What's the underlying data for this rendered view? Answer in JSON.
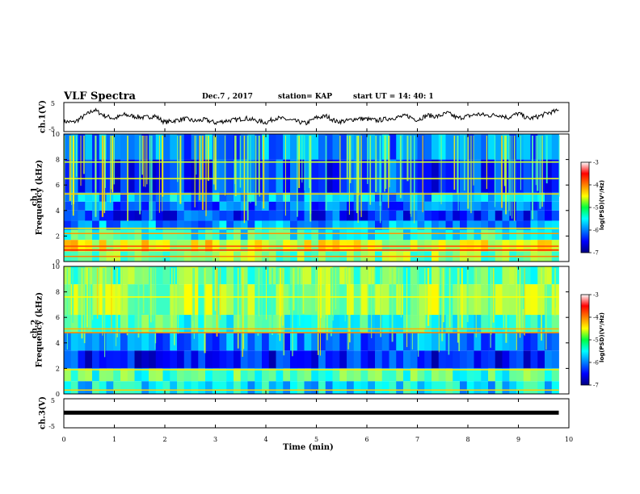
{
  "header": {
    "title": "VLF Spectra",
    "date": "Dec.7 , 2017",
    "station": "station= KAP",
    "start": "start UT = 14: 40: 1"
  },
  "chart_data": [
    {
      "panel": "ch1-waveform",
      "type": "line",
      "ylabel": "ch.1(V)",
      "ylim": [
        -5,
        5
      ],
      "y_tick_labels": [
        "5",
        "-5"
      ],
      "xlim": [
        0,
        10
      ],
      "series": [
        {
          "x": [
            0,
            0.2,
            0.4,
            0.6,
            0.8,
            1.0,
            1.2,
            1.4,
            1.6,
            1.8,
            2.0,
            2.2,
            2.4,
            2.6,
            2.8,
            3.0,
            3.2,
            3.4,
            3.6,
            3.8,
            4.0,
            4.2,
            4.4,
            4.6,
            4.8,
            5.0,
            5.2,
            5.4,
            5.6,
            5.8,
            6.0,
            6.2,
            6.4,
            6.6,
            6.8,
            7.0,
            7.2,
            7.4,
            7.6,
            7.8,
            8.0,
            8.2,
            8.4,
            8.6,
            8.8,
            9.0,
            9.2,
            9.4,
            9.6,
            9.8
          ],
          "values": [
            -1.5,
            -1.8,
            0.3,
            2.5,
            0.5,
            -0.5,
            0.8,
            0.2,
            -0.2,
            0.4,
            -1.8,
            -1.2,
            -0.6,
            -1.4,
            -0.9,
            -2.0,
            -1.3,
            -1.0,
            -0.4,
            -1.2,
            -1.9,
            -0.3,
            -0.8,
            -1.5,
            -2.2,
            -0.2,
            0.3,
            -1.6,
            -1.3,
            -0.5,
            -0.7,
            -1.2,
            -0.6,
            -0.1,
            0.4,
            -1.0,
            0.6,
            0.2,
            1.4,
            -0.4,
            0.3,
            1.0,
            0.5,
            0.8,
            -0.2,
            1.3,
            -0.6,
            0.2,
            1.5,
            2.2
          ]
        }
      ]
    },
    {
      "panel": "ch1-spectrogram",
      "type": "heatmap",
      "ylabel": "Frequency (kHz)",
      "channel_label": "ch.1",
      "ylim": [
        0,
        10
      ],
      "y_tick_labels": [
        "0",
        "2",
        "4",
        "6",
        "8",
        "10"
      ],
      "xlim": [
        0,
        10
      ],
      "data_end_min": 9.8,
      "color_range": [
        -7,
        -3
      ],
      "colorbar_label": "log(PSD)(V²/Hz)",
      "colorbar_ticks": [
        "-3",
        "-4",
        "-5",
        "-6",
        "-7"
      ],
      "bands": [
        {
          "f": [
            0,
            0.8
          ],
          "level": -5.0
        },
        {
          "f": [
            0.8,
            1.7
          ],
          "level": -4.6
        },
        {
          "f": [
            1.7,
            2.5
          ],
          "level": -5.4
        },
        {
          "f": [
            2.5,
            3.2
          ],
          "level": -5.9
        },
        {
          "f": [
            3.2,
            4.0
          ],
          "level": -6.3
        },
        {
          "f": [
            4.0,
            4.7
          ],
          "level": -6.1
        },
        {
          "f": [
            4.7,
            5.4
          ],
          "level": -5.8
        },
        {
          "f": [
            5.4,
            8.0
          ],
          "level": -6.3
        },
        {
          "f": [
            8.0,
            10.0
          ],
          "level": -6.0
        }
      ],
      "lines": [
        {
          "f": 0.4,
          "level": -4.0
        },
        {
          "f": 0.9,
          "level": -3.6
        },
        {
          "f": 1.2,
          "level": -3.8
        },
        {
          "f": 2.2,
          "level": -4.1
        },
        {
          "f": 2.6,
          "level": -4.4
        },
        {
          "f": 5.3,
          "level": -4.3
        },
        {
          "f": 6.5,
          "level": -4.6
        },
        {
          "f": 7.8,
          "level": -4.7
        }
      ]
    },
    {
      "panel": "ch2-spectrogram",
      "type": "heatmap",
      "ylabel": "Frequency (kHz)",
      "channel_label": "ch.2",
      "ylim": [
        0,
        10
      ],
      "y_tick_labels": [
        "0",
        "2",
        "4",
        "6",
        "8",
        "10"
      ],
      "xlim": [
        0,
        10
      ],
      "data_end_min": 9.8,
      "color_range": [
        -7,
        -3
      ],
      "colorbar_label": "log(PSD)(V²/Hz)",
      "colorbar_ticks": [
        "-3",
        "-4",
        "-5",
        "-6",
        "-7"
      ],
      "bands": [
        {
          "f": [
            0,
            1.0
          ],
          "level": -5.6
        },
        {
          "f": [
            1.0,
            2.0
          ],
          "level": -5.2
        },
        {
          "f": [
            2.0,
            3.4
          ],
          "level": -6.4
        },
        {
          "f": [
            3.4,
            4.8
          ],
          "level": -6.0
        },
        {
          "f": [
            4.8,
            6.2
          ],
          "level": -5.3
        },
        {
          "f": [
            6.2,
            8.6
          ],
          "level": -4.9
        },
        {
          "f": [
            8.6,
            10.0
          ],
          "level": -5.1
        }
      ],
      "lines": [
        {
          "f": 0.3,
          "level": -4.3
        },
        {
          "f": 1.9,
          "level": -4.4
        },
        {
          "f": 4.8,
          "level": -4.0
        },
        {
          "f": 5.1,
          "level": -4.2
        },
        {
          "f": 7.6,
          "level": -4.5
        }
      ]
    },
    {
      "panel": "ch3-waveform",
      "type": "line",
      "ylabel": "ch.3(V)",
      "ylim": [
        -5,
        5
      ],
      "y_tick_labels": [
        "5",
        "-5"
      ],
      "xlim": [
        0,
        10
      ],
      "series": [
        {
          "x": [
            0,
            9.8
          ],
          "values": [
            0.2,
            0.2
          ]
        }
      ]
    }
  ],
  "xaxis": {
    "label": "Time (min)",
    "ticks": [
      "0",
      "1",
      "2",
      "3",
      "4",
      "5",
      "6",
      "7",
      "8",
      "9",
      "10"
    ]
  }
}
